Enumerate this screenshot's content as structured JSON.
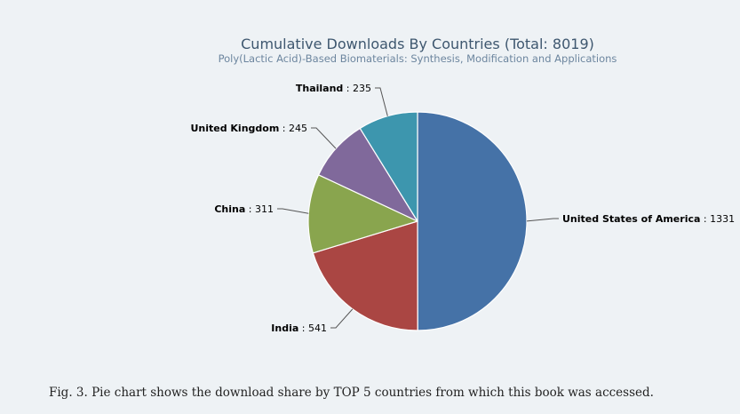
{
  "chart_data": {
    "type": "pie",
    "title": "Cumulative Downloads By Countries (Total: 8019)",
    "subtitle": "Poly(Lactic Acid)-Based Biomaterials: Synthesis, Modification and Applications",
    "slices": [
      {
        "name": "United States of America",
        "value": 1331,
        "color": "#4572a7"
      },
      {
        "name": "India",
        "value": 541,
        "color": "#aa4643"
      },
      {
        "name": "China",
        "value": 311,
        "color": "#89a54e"
      },
      {
        "name": "United Kingdom",
        "value": 245,
        "color": "#80699b"
      },
      {
        "name": "Thailand",
        "value": 235,
        "color": "#3d96ae"
      }
    ]
  },
  "caption": "Fig. 3. Pie chart shows the download share by TOP 5 countries from which this book was accessed.",
  "colors": {
    "background": "#eef2f5",
    "title": "#3e576f",
    "subtitle": "#6d869f"
  }
}
